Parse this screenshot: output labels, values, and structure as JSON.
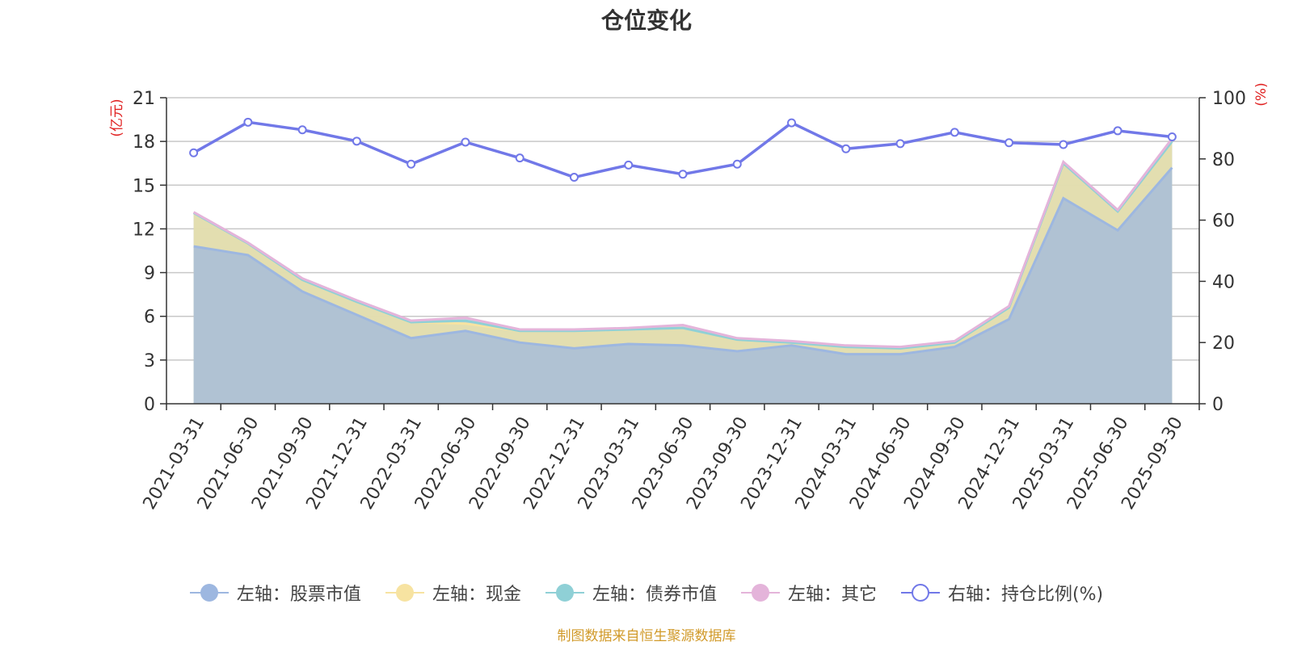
{
  "title": "仓位变化",
  "footer": "制图数据来自恒生聚源数据库",
  "colors": {
    "stock": "#9db7e0",
    "cash": "#f7e3a1",
    "bond": "#8fd0d6",
    "other": "#e4b4da",
    "ratio": "#7178e8",
    "axis_unit": "#e02020"
  },
  "chart_data": {
    "type": "area",
    "x": [
      "2021-03-31",
      "2021-06-30",
      "2021-09-30",
      "2021-12-31",
      "2022-03-31",
      "2022-06-30",
      "2022-09-30",
      "2022-12-31",
      "2023-03-31",
      "2023-06-30",
      "2023-09-30",
      "2023-12-31",
      "2024-03-31",
      "2024-06-30",
      "2024-09-30",
      "2024-12-31",
      "2025-03-31",
      "2025-06-30",
      "2025-09-30"
    ],
    "left_axis": {
      "unit": "(亿元)",
      "ylim": [
        0,
        21
      ],
      "ticks": [
        0,
        3,
        6,
        9,
        12,
        15,
        18,
        21
      ]
    },
    "right_axis": {
      "unit": "(%)",
      "ylim": [
        0,
        100
      ],
      "ticks": [
        0,
        20,
        40,
        60,
        80,
        100
      ]
    },
    "stacked": true,
    "grid": true,
    "legend_position": "bottom",
    "series": [
      {
        "name": "左轴：股票市值",
        "axis": "left",
        "color_key": "stock",
        "values": [
          10.8,
          10.2,
          7.7,
          6.1,
          4.5,
          5.0,
          4.2,
          3.8,
          4.1,
          4.0,
          3.6,
          4.0,
          3.4,
          3.4,
          3.9,
          5.8,
          14.1,
          11.9,
          16.2
        ]
      },
      {
        "name": "左轴：现金",
        "axis": "left",
        "color_key": "cash",
        "values": [
          2.3,
          0.8,
          0.8,
          0.9,
          1.1,
          0.5,
          0.8,
          1.2,
          1.0,
          1.2,
          0.8,
          0.2,
          0.5,
          0.4,
          0.3,
          0.8,
          2.4,
          1.3,
          1.8
        ]
      },
      {
        "name": "左轴：债券市值",
        "axis": "left",
        "color_key": "bond",
        "values": [
          0,
          0,
          0,
          0,
          0,
          0.2,
          0,
          0,
          0,
          0,
          0,
          0,
          0,
          0,
          0,
          0,
          0,
          0,
          0
        ]
      },
      {
        "name": "左轴：其它",
        "axis": "left",
        "color_key": "other",
        "values": [
          0.05,
          0.05,
          0.1,
          0.1,
          0.1,
          0.2,
          0.1,
          0.1,
          0.1,
          0.2,
          0.1,
          0.1,
          0.1,
          0.1,
          0.1,
          0.1,
          0.1,
          0.1,
          0.2
        ]
      },
      {
        "name": "右轴：持仓比例(%)",
        "axis": "right",
        "color_key": "ratio",
        "values": [
          82.0,
          92.0,
          89.5,
          85.8,
          78.3,
          85.5,
          80.3,
          74.0,
          78.0,
          75.0,
          78.3,
          91.8,
          83.3,
          85.0,
          88.7,
          85.3,
          84.7,
          89.2,
          87.2
        ]
      }
    ]
  }
}
